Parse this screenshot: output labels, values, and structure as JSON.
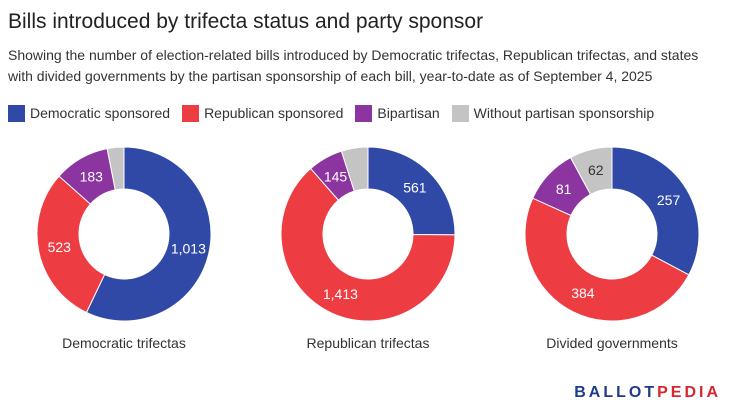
{
  "title": "Bills introduced by trifecta status and party sponsor",
  "subtitle": "Showing the number of election-related bills introduced by Democratic trifectas, Republican trifectas, and states with divided governments by the partisan sponsorship of each bill, year-to-date as of September 4, 2025",
  "colors": {
    "democratic": "#3049a6",
    "republican": "#ee3c43",
    "bipartisan": "#8c35a1",
    "none": "#c4c4c4"
  },
  "legend": [
    {
      "label": "Democratic sponsored",
      "color": "#3049a6"
    },
    {
      "label": "Republican sponsored",
      "color": "#ee3c43"
    },
    {
      "label": "Bipartisan",
      "color": "#8c35a1"
    },
    {
      "label": "Without partisan sponsorship",
      "color": "#c4c4c4"
    }
  ],
  "logo": {
    "part1": "BALLOT",
    "part2": "PEDIA"
  },
  "chart_data": [
    {
      "type": "pie",
      "title": "Democratic trifectas",
      "categories": [
        "Democratic sponsored",
        "Republican sponsored",
        "Bipartisan",
        "Without partisan sponsorship"
      ],
      "values": [
        1013,
        523,
        183,
        55
      ],
      "labels": [
        "1,013",
        "523",
        "183",
        ""
      ]
    },
    {
      "type": "pie",
      "title": "Republican trifectas",
      "categories": [
        "Democratic sponsored",
        "Republican sponsored",
        "Bipartisan",
        "Without partisan sponsorship"
      ],
      "values": [
        561,
        1413,
        145,
        110
      ],
      "labels": [
        "561",
        "1,413",
        "145",
        ""
      ]
    },
    {
      "type": "pie",
      "title": "Divided governments",
      "categories": [
        "Democratic sponsored",
        "Republican sponsored",
        "Bipartisan",
        "Without partisan sponsorship"
      ],
      "values": [
        257,
        384,
        81,
        62
      ],
      "labels": [
        "257",
        "384",
        "81",
        "62"
      ]
    }
  ]
}
